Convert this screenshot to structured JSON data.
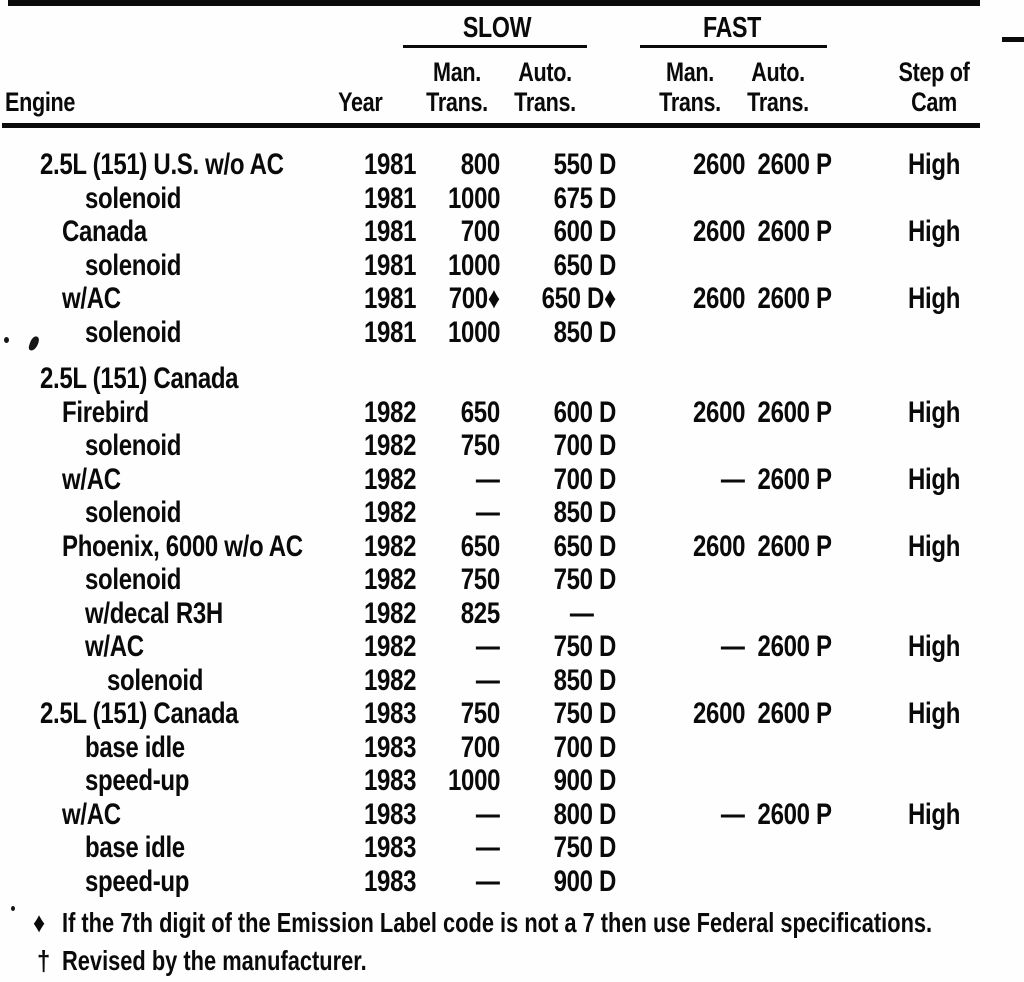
{
  "table": {
    "header": {
      "engine": "Engine",
      "year": "Year",
      "slow_group": "SLOW",
      "fast_group": "FAST",
      "man": "Man.",
      "auto": "Auto.",
      "trans": "Trans.",
      "step_of": "Step of",
      "cam": "Cam"
    },
    "rows": [
      {
        "engine": "2.5L (151) U.S. w/o AC",
        "indent": 0,
        "year": "1981",
        "slow_man": "800",
        "slow_auto": "550 D",
        "fast_man": "2600",
        "fast_auto": "2600 P",
        "cam": "High"
      },
      {
        "engine": "solenoid",
        "indent": 2,
        "year": "1981",
        "slow_man": "1000",
        "slow_auto": "675 D",
        "fast_man": "",
        "fast_auto": "",
        "cam": ""
      },
      {
        "engine": "Canada",
        "indent": 1,
        "year": "1981",
        "slow_man": "700",
        "slow_auto": "600 D",
        "fast_man": "2600",
        "fast_auto": "2600 P",
        "cam": "High"
      },
      {
        "engine": "solenoid",
        "indent": 2,
        "year": "1981",
        "slow_man": "1000",
        "slow_auto": "650 D",
        "fast_man": "",
        "fast_auto": "",
        "cam": ""
      },
      {
        "engine": "w/AC",
        "indent": 1,
        "year": "1981",
        "slow_man": "700♦",
        "slow_auto": "650 D♦",
        "fast_man": "2600",
        "fast_auto": "2600 P",
        "cam": "High"
      },
      {
        "engine": "solenoid",
        "indent": 2,
        "year": "1981",
        "slow_man": "1000",
        "slow_auto": "850 D",
        "fast_man": "",
        "fast_auto": "",
        "cam": ""
      },
      {
        "engine": "2.5L (151) Canada",
        "indent": 0,
        "year": "",
        "slow_man": "",
        "slow_auto": "",
        "fast_man": "",
        "fast_auto": "",
        "cam": "",
        "gap_before": true
      },
      {
        "engine": "Firebird",
        "indent": 1,
        "year": "1982",
        "slow_man": "650",
        "slow_auto": "600 D",
        "fast_man": "2600",
        "fast_auto": "2600 P",
        "cam": "High"
      },
      {
        "engine": "solenoid",
        "indent": 2,
        "year": "1982",
        "slow_man": "750",
        "slow_auto": "700 D",
        "fast_man": "",
        "fast_auto": "",
        "cam": ""
      },
      {
        "engine": "w/AC",
        "indent": 1,
        "year": "1982",
        "slow_man": "—",
        "slow_auto": "700 D",
        "fast_man": "—",
        "fast_auto": "2600 P",
        "cam": "High"
      },
      {
        "engine": "solenoid",
        "indent": 2,
        "year": "1982",
        "slow_man": "—",
        "slow_auto": "850 D",
        "fast_man": "",
        "fast_auto": "",
        "cam": ""
      },
      {
        "engine": "Phoenix, 6000 w/o AC",
        "indent": 1,
        "year": "1982",
        "slow_man": "650",
        "slow_auto": "650 D",
        "fast_man": "2600",
        "fast_auto": "2600 P",
        "cam": "High"
      },
      {
        "engine": "solenoid",
        "indent": 2,
        "year": "1982",
        "slow_man": "750",
        "slow_auto": "750 D",
        "fast_man": "",
        "fast_auto": "",
        "cam": ""
      },
      {
        "engine": "w/decal R3H",
        "indent": 2,
        "year": "1982",
        "slow_man": "825",
        "slow_auto": "—",
        "fast_man": "",
        "fast_auto": "",
        "cam": ""
      },
      {
        "engine": "w/AC",
        "indent": 2,
        "year": "1982",
        "slow_man": "—",
        "slow_auto": "750 D",
        "fast_man": "—",
        "fast_auto": "2600 P",
        "cam": "High"
      },
      {
        "engine": "solenoid",
        "indent": 3,
        "year": "1982",
        "slow_man": "—",
        "slow_auto": "850 D",
        "fast_man": "",
        "fast_auto": "",
        "cam": ""
      },
      {
        "engine": "2.5L (151) Canada",
        "indent": 0,
        "year": "1983",
        "slow_man": "750",
        "slow_auto": "750 D",
        "fast_man": "2600",
        "fast_auto": "2600 P",
        "cam": "High"
      },
      {
        "engine": "base idle",
        "indent": 2,
        "year": "1983",
        "slow_man": "700",
        "slow_auto": "700 D",
        "fast_man": "",
        "fast_auto": "",
        "cam": ""
      },
      {
        "engine": "speed-up",
        "indent": 2,
        "year": "1983",
        "slow_man": "1000",
        "slow_auto": "900 D",
        "fast_man": "",
        "fast_auto": "",
        "cam": ""
      },
      {
        "engine": "w/AC",
        "indent": 1,
        "year": "1983",
        "slow_man": "—",
        "slow_auto": "800 D",
        "fast_man": "—",
        "fast_auto": "2600 P",
        "cam": "High"
      },
      {
        "engine": "base idle",
        "indent": 2,
        "year": "1983",
        "slow_man": "—",
        "slow_auto": "750 D",
        "fast_man": "",
        "fast_auto": "",
        "cam": ""
      },
      {
        "engine": "speed-up",
        "indent": 2,
        "year": "1983",
        "slow_man": "—",
        "slow_auto": "900 D",
        "fast_man": "",
        "fast_auto": "",
        "cam": ""
      }
    ]
  },
  "footnotes": [
    {
      "marker": "♦",
      "text": "If the 7th digit of the Emission Label code is not a 7 then use Federal specifications."
    },
    {
      "marker": "†",
      "text": "Revised by the manufacturer."
    }
  ],
  "colors": {
    "ink": "#0a0a0a",
    "paper": "#fefefe"
  }
}
